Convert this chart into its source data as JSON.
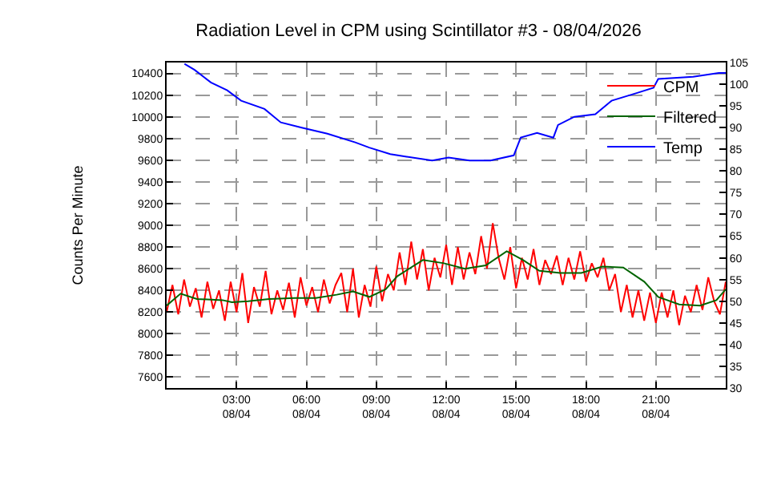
{
  "chart_data": {
    "type": "line",
    "title": "Radiation Level in CPM using Scintillator #3 - 08/04/2026",
    "ylabel": "Counts Per Minute",
    "xlim": [
      "2026-08-04T00:00",
      "2026-08-05T00:00"
    ],
    "xticks": [
      {
        "value": "2026-08-04T03:00",
        "label": "03:00\n08/04"
      },
      {
        "value": "2026-08-04T06:00",
        "label": "06:00\n08/04"
      },
      {
        "value": "2026-08-04T09:00",
        "label": "09:00\n08/04"
      },
      {
        "value": "2026-08-04T12:00",
        "label": "12:00\n08/04"
      },
      {
        "value": "2026-08-04T15:00",
        "label": "15:00\n08/04"
      },
      {
        "value": "2026-08-04T18:00",
        "label": "18:00\n08/04"
      },
      {
        "value": "2026-08-04T21:00",
        "label": "21:00\n08/04"
      }
    ],
    "ylim": [
      7500,
      10500
    ],
    "yticks": [
      7600,
      7800,
      8000,
      8200,
      8400,
      8600,
      8800,
      9000,
      9200,
      9400,
      9600,
      9800,
      10000,
      10200,
      10400
    ],
    "y2lim": [
      30,
      105
    ],
    "y2ticks": [
      30,
      35,
      40,
      45,
      50,
      55,
      60,
      65,
      70,
      75,
      80,
      85,
      90,
      95,
      100,
      105
    ],
    "grid": true,
    "legend": "top right",
    "line_style": "solid",
    "marker": "none",
    "series": [
      {
        "name": "CPM",
        "color": "#ff0000",
        "x": [
          "2026-08-04T00:00",
          "2026-08-04T00:15",
          "2026-08-04T00:30",
          "2026-08-04T00:45",
          "2026-08-04T01:00",
          "2026-08-04T01:15",
          "2026-08-04T01:30",
          "2026-08-04T01:45",
          "2026-08-04T02:00",
          "2026-08-04T02:15",
          "2026-08-04T02:30",
          "2026-08-04T02:45",
          "2026-08-04T03:00",
          "2026-08-04T03:15",
          "2026-08-04T03:30",
          "2026-08-04T03:45",
          "2026-08-04T04:00",
          "2026-08-04T04:15",
          "2026-08-04T04:30",
          "2026-08-04T04:45",
          "2026-08-04T05:00",
          "2026-08-04T05:15",
          "2026-08-04T05:30",
          "2026-08-04T05:45",
          "2026-08-04T06:00",
          "2026-08-04T06:15",
          "2026-08-04T06:30",
          "2026-08-04T06:45",
          "2026-08-04T07:00",
          "2026-08-04T07:15",
          "2026-08-04T07:30",
          "2026-08-04T07:45",
          "2026-08-04T08:00",
          "2026-08-04T08:15",
          "2026-08-04T08:30",
          "2026-08-04T08:45",
          "2026-08-04T09:00",
          "2026-08-04T09:15",
          "2026-08-04T09:30",
          "2026-08-04T09:45",
          "2026-08-04T10:00",
          "2026-08-04T10:15",
          "2026-08-04T10:30",
          "2026-08-04T10:45",
          "2026-08-04T11:00",
          "2026-08-04T11:15",
          "2026-08-04T11:30",
          "2026-08-04T11:45",
          "2026-08-04T12:00",
          "2026-08-04T12:15",
          "2026-08-04T12:30",
          "2026-08-04T12:45",
          "2026-08-04T13:00",
          "2026-08-04T13:15",
          "2026-08-04T13:30",
          "2026-08-04T13:45",
          "2026-08-04T14:00",
          "2026-08-04T14:15",
          "2026-08-04T14:30",
          "2026-08-04T14:45",
          "2026-08-04T15:00",
          "2026-08-04T15:15",
          "2026-08-04T15:30",
          "2026-08-04T15:45",
          "2026-08-04T16:00",
          "2026-08-04T16:15",
          "2026-08-04T16:30",
          "2026-08-04T16:45",
          "2026-08-04T17:00",
          "2026-08-04T17:15",
          "2026-08-04T17:30",
          "2026-08-04T17:45",
          "2026-08-04T18:00",
          "2026-08-04T18:15",
          "2026-08-04T18:30",
          "2026-08-04T18:45",
          "2026-08-04T19:00",
          "2026-08-04T19:15",
          "2026-08-04T19:30",
          "2026-08-04T19:45",
          "2026-08-04T20:00",
          "2026-08-04T20:15",
          "2026-08-04T20:30",
          "2026-08-04T20:45",
          "2026-08-04T21:00",
          "2026-08-04T21:15",
          "2026-08-04T21:30",
          "2026-08-04T21:45",
          "2026-08-04T22:00",
          "2026-08-04T22:15",
          "2026-08-04T22:30",
          "2026-08-04T22:45",
          "2026-08-04T23:00",
          "2026-08-04T23:15",
          "2026-08-04T23:30",
          "2026-08-04T23:45",
          "2026-08-05T00:00"
        ],
        "values": [
          8200,
          8450,
          8180,
          8500,
          8250,
          8420,
          8150,
          8480,
          8230,
          8400,
          8120,
          8480,
          8200,
          8560,
          8100,
          8430,
          8250,
          8580,
          8180,
          8400,
          8220,
          8470,
          8150,
          8520,
          8260,
          8430,
          8200,
          8500,
          8280,
          8450,
          8560,
          8200,
          8600,
          8150,
          8450,
          8250,
          8620,
          8300,
          8550,
          8400,
          8750,
          8450,
          8850,
          8500,
          8780,
          8400,
          8700,
          8520,
          8820,
          8450,
          8800,
          8500,
          8750,
          8550,
          8900,
          8600,
          9020,
          8700,
          8500,
          8800,
          8420,
          8700,
          8500,
          8780,
          8450,
          8680,
          8550,
          8720,
          8450,
          8700,
          8500,
          8760,
          8480,
          8650,
          8520,
          8700,
          8400,
          8550,
          8200,
          8450,
          8150,
          8400,
          8120,
          8380,
          8100,
          8380,
          8150,
          8400,
          8080,
          8350,
          8200,
          8450,
          8220,
          8520,
          8300,
          8180,
          8480
        ]
      },
      {
        "name": "Filtered",
        "color": "#006400",
        "x": [
          "2026-08-04T00:00",
          "2026-08-04T00:36",
          "2026-08-04T01:18",
          "2026-08-04T02:24",
          "2026-08-04T02:48",
          "2026-08-04T03:30",
          "2026-08-04T04:24",
          "2026-08-04T05:30",
          "2026-08-04T06:24",
          "2026-08-04T07:18",
          "2026-08-04T08:00",
          "2026-08-04T08:42",
          "2026-08-04T09:24",
          "2026-08-04T09:54",
          "2026-08-04T11:00",
          "2026-08-04T11:54",
          "2026-08-04T12:48",
          "2026-08-04T13:42",
          "2026-08-04T14:36",
          "2026-08-04T15:18",
          "2026-08-04T16:00",
          "2026-08-04T16:54",
          "2026-08-04T17:48",
          "2026-08-04T18:42",
          "2026-08-04T19:36",
          "2026-08-04T20:30",
          "2026-08-04T21:06",
          "2026-08-04T22:00",
          "2026-08-04T22:54",
          "2026-08-04T23:36",
          "2026-08-05T00:00"
        ],
        "values": [
          8260,
          8370,
          8320,
          8310,
          8290,
          8300,
          8320,
          8330,
          8330,
          8360,
          8390,
          8340,
          8410,
          8530,
          8680,
          8650,
          8600,
          8630,
          8760,
          8680,
          8580,
          8560,
          8560,
          8620,
          8610,
          8480,
          8340,
          8270,
          8260,
          8310,
          8410
        ]
      },
      {
        "name": "Temp",
        "color": "#0000ff",
        "axis": "y2",
        "x": [
          "2026-08-04T00:46",
          "2026-08-04T01:12",
          "2026-08-04T01:54",
          "2026-08-04T02:36",
          "2026-08-04T03:12",
          "2026-08-04T04:12",
          "2026-08-04T04:54",
          "2026-08-04T05:48",
          "2026-08-04T06:54",
          "2026-08-04T08:06",
          "2026-08-04T08:42",
          "2026-08-04T09:36",
          "2026-08-04T10:18",
          "2026-08-04T11:24",
          "2026-08-04T12:06",
          "2026-08-04T13:00",
          "2026-08-04T13:54",
          "2026-08-04T14:54",
          "2026-08-04T15:12",
          "2026-08-04T15:54",
          "2026-08-04T16:36",
          "2026-08-04T16:48",
          "2026-08-04T17:30",
          "2026-08-04T18:24",
          "2026-08-04T19:06",
          "2026-08-04T20:12",
          "2026-08-04T20:54",
          "2026-08-04T21:06",
          "2026-08-04T22:36",
          "2026-08-04T23:42",
          "2026-08-05T00:00"
        ],
        "values": [
          104.7,
          103.3,
          100.4,
          98.6,
          96.2,
          94.3,
          91.2,
          90,
          88.6,
          86.6,
          85.4,
          83.9,
          83.3,
          82.4,
          83.1,
          82.4,
          82.4,
          83.6,
          87.7,
          88.8,
          87.7,
          90.6,
          92.5,
          93.1,
          96.2,
          98.0,
          99.2,
          101.2,
          101.7,
          102.6,
          102.6
        ]
      }
    ]
  }
}
